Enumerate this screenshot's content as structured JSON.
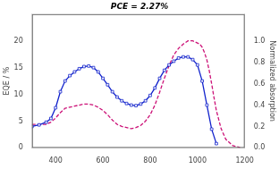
{
  "chart_data": {
    "type": "line",
    "title": "PCE = 2.27%",
    "ylabel": "EQE / %",
    "y2label": "Normalized absorption",
    "xlim": [
      300,
      1200
    ],
    "xticks": [
      400,
      600,
      800,
      1000,
      1200
    ],
    "ylim": [
      0,
      25
    ],
    "yticks": [
      0,
      5,
      10,
      15,
      20
    ],
    "y2lim": [
      0,
      1.25
    ],
    "y2ticks": [
      {
        "value": 0.0,
        "label": "0.0"
      },
      0.2,
      0.4,
      0.6,
      0.8,
      {
        "value": 1.0,
        "label": "1.0"
      }
    ],
    "grid": false,
    "series": [
      {
        "color": "#1122cc",
        "marker": "square",
        "axis": "y",
        "x": [
          300,
          330,
          360,
          380,
          400,
          420,
          440,
          460,
          480,
          500,
          520,
          540,
          560,
          580,
          600,
          620,
          640,
          660,
          680,
          700,
          720,
          740,
          760,
          780,
          800,
          820,
          840,
          860,
          880,
          900,
          920,
          940,
          960,
          980,
          1000,
          1020,
          1040,
          1060,
          1080
        ],
        "values": [
          4.0,
          4.3,
          4.8,
          5.5,
          7.5,
          10.5,
          12.5,
          13.5,
          14.2,
          14.8,
          15.2,
          15.3,
          15.0,
          14.2,
          13.0,
          11.8,
          10.5,
          9.5,
          8.8,
          8.3,
          8.0,
          7.9,
          8.2,
          8.8,
          9.8,
          11.2,
          13.0,
          14.5,
          15.5,
          16.2,
          16.8,
          17.0,
          17.0,
          16.5,
          15.5,
          12.5,
          8.0,
          3.5,
          0.8
        ]
      },
      {
        "color": "#cc1177",
        "line_style": "dashed",
        "axis": "y2",
        "x": [
          300,
          330,
          360,
          380,
          400,
          420,
          440,
          460,
          480,
          500,
          520,
          540,
          560,
          580,
          600,
          620,
          640,
          660,
          680,
          700,
          720,
          740,
          760,
          780,
          800,
          820,
          840,
          860,
          880,
          900,
          920,
          940,
          960,
          980,
          1000,
          1010,
          1020,
          1030,
          1040,
          1050,
          1060,
          1070,
          1080,
          1100,
          1120,
          1150,
          1180
        ],
        "values": [
          0.22,
          0.22,
          0.22,
          0.24,
          0.28,
          0.33,
          0.37,
          0.38,
          0.39,
          0.4,
          0.41,
          0.41,
          0.4,
          0.38,
          0.35,
          0.31,
          0.26,
          0.22,
          0.2,
          0.19,
          0.18,
          0.19,
          0.21,
          0.25,
          0.31,
          0.4,
          0.52,
          0.65,
          0.77,
          0.87,
          0.93,
          0.97,
          1.0,
          1.0,
          0.98,
          0.97,
          0.94,
          0.89,
          0.82,
          0.72,
          0.6,
          0.47,
          0.35,
          0.18,
          0.08,
          0.02,
          0.005
        ]
      }
    ]
  }
}
